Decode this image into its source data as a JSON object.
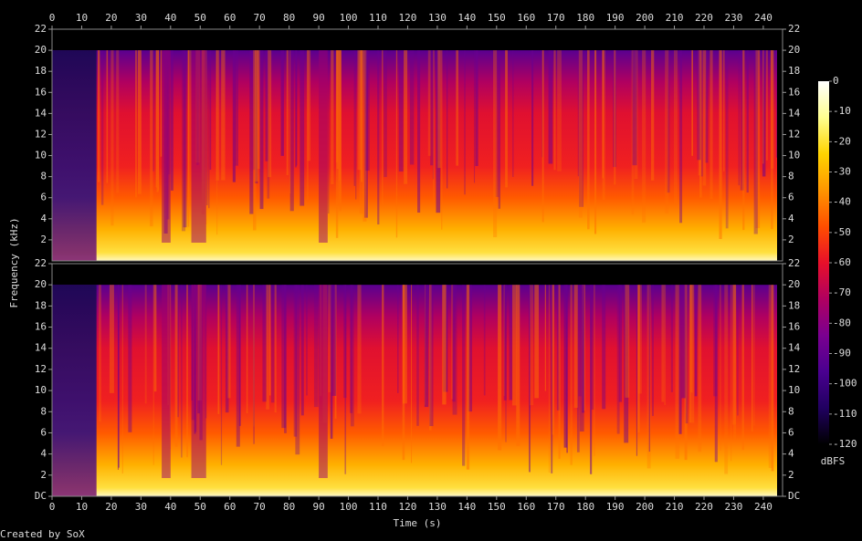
{
  "chart_data": {
    "type": "spectrogram",
    "x_label": "Time (s)",
    "y_label": "Frequency (kHz)",
    "xlim": [
      0,
      246.5
    ],
    "xticks": [
      0,
      10,
      20,
      30,
      40,
      50,
      60,
      70,
      80,
      90,
      100,
      110,
      120,
      130,
      140,
      150,
      160,
      170,
      180,
      190,
      200,
      210,
      220,
      230,
      240
    ],
    "channels": [
      {
        "ylim": [
          0,
          22
        ],
        "yticks": [
          2,
          4,
          6,
          8,
          10,
          12,
          14,
          16,
          18,
          20,
          22
        ]
      },
      {
        "ylim": [
          0,
          22
        ],
        "yticks": [
          {
            "value": 0,
            "label": "DC"
          },
          2,
          4,
          6,
          8,
          10,
          12,
          14,
          16,
          18,
          20,
          22
        ]
      }
    ],
    "colorbar": {
      "label": "dBFS",
      "zlim": [
        -120,
        0
      ],
      "zticks": [
        0,
        -10,
        -20,
        -30,
        -40,
        -50,
        -60,
        -70,
        -80,
        -90,
        -100,
        -110,
        -120
      ],
      "colormap": [
        "#ffffff",
        "#ffff90",
        "#ffd400",
        "#ff9600",
        "#ff4e00",
        "#e8102a",
        "#b00060",
        "#7a0090",
        "#4a0090",
        "#200060",
        "#000000"
      ]
    },
    "credit": "Created by SoX"
  }
}
